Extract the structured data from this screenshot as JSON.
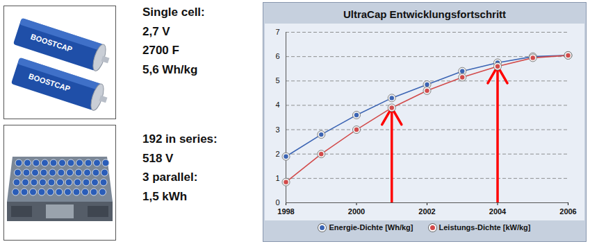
{
  "specs": [
    {
      "lines": [
        "Single cell:",
        "2,7 V",
        "2700 F",
        "5,6 Wh/kg"
      ]
    },
    {
      "lines": [
        "192 in series:",
        "518 V",
        "3 parallel:",
        "1,5 kWh"
      ]
    }
  ],
  "cell_label": "BOOSTCAP",
  "chart_data": {
    "type": "line",
    "title": "UltraCap Entwicklungsfortschritt",
    "x": [
      1998,
      1999,
      2000,
      2001,
      2002,
      2003,
      2004,
      2005,
      2006
    ],
    "series": [
      {
        "name": "Energie-Dichte [Wh/kg]",
        "color": "#3b64b3",
        "marker": "circle",
        "values": [
          1.9,
          2.8,
          3.6,
          4.3,
          4.85,
          5.4,
          5.75,
          6.0,
          6.05
        ]
      },
      {
        "name": "Leistungs-Dichte [kW/kg]",
        "color": "#d24a4a",
        "marker": "circle",
        "values": [
          0.85,
          2.0,
          3.0,
          3.9,
          4.6,
          5.15,
          5.6,
          5.95,
          6.05
        ]
      }
    ],
    "xlim": [
      1998,
      2006
    ],
    "xticks": [
      1998,
      2000,
      2002,
      2004,
      2006
    ],
    "ylim": [
      0,
      7
    ],
    "yticks": [
      0,
      1,
      2,
      3,
      4,
      5,
      6,
      7
    ],
    "grid": true,
    "legend": "bottom",
    "arrows": [
      {
        "x": 2001,
        "y": 3.9
      },
      {
        "x": 2004,
        "y": 5.6
      }
    ]
  }
}
